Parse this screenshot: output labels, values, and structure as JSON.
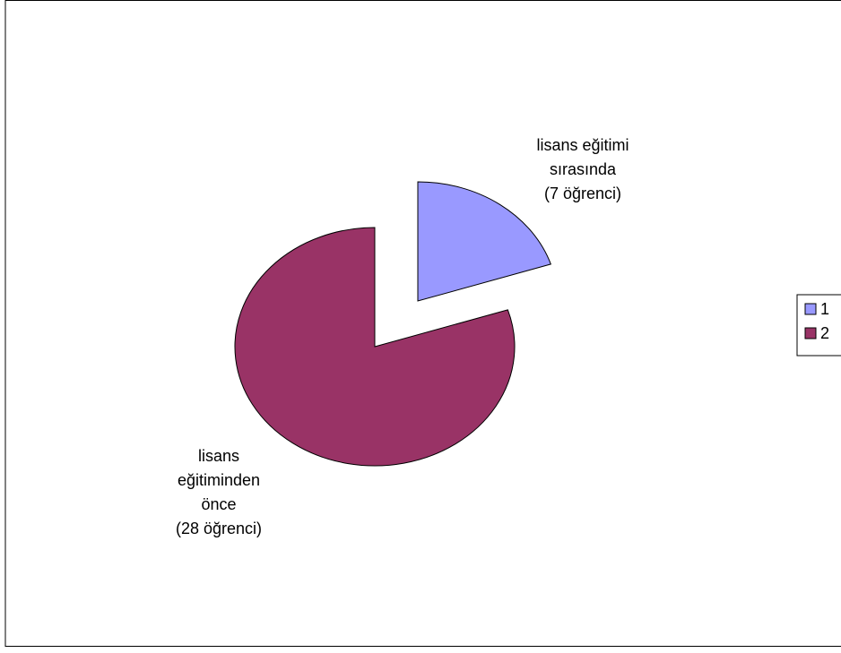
{
  "chart_data": {
    "type": "pie",
    "series": [
      {
        "values": [
          7,
          28
        ],
        "colors": [
          "#9999FF",
          "#993366"
        ],
        "labels": [
          [
            "lisans eğitimi",
            "sırasında",
            "(7 öğrenci)"
          ],
          [
            "lisans",
            "eğitiminden",
            "önce",
            "(28 öğrenci)"
          ]
        ]
      }
    ],
    "legend": {
      "position": "right",
      "entries": [
        "1",
        "2"
      ]
    },
    "exploded": true
  }
}
